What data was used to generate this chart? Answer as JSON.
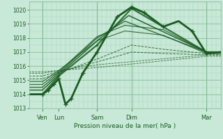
{
  "xlabel": "Pression niveau de la mer( hPa )",
  "bg_color": "#c8e8d8",
  "grid_major_color": "#88bb99",
  "grid_minor_color": "#aad4bb",
  "line_color": "#1a5c20",
  "ylim": [
    1013.0,
    1020.6
  ],
  "yticks": [
    1013,
    1014,
    1015,
    1016,
    1017,
    1018,
    1019,
    1020
  ],
  "xtick_labels": [
    "Ven",
    "Lun",
    "Sam",
    "Dim",
    "Mar"
  ],
  "xtick_positions": [
    0.07,
    0.155,
    0.355,
    0.535,
    0.925
  ],
  "vlines": [
    0.07,
    0.355,
    0.535,
    0.925
  ],
  "figsize": [
    3.2,
    2.0
  ],
  "dpi": 100,
  "lines": [
    {
      "kx": [
        0.07,
        0.155,
        0.355,
        0.535,
        0.925
      ],
      "ky": [
        1014.0,
        1015.3,
        1017.5,
        1020.1,
        1017.0
      ],
      "lw": 1.6,
      "ls": "-"
    },
    {
      "kx": [
        0.07,
        0.155,
        0.355,
        0.52,
        0.925
      ],
      "ky": [
        1014.3,
        1015.4,
        1017.8,
        1019.6,
        1017.0
      ],
      "lw": 1.2,
      "ls": "-"
    },
    {
      "kx": [
        0.07,
        0.155,
        0.355,
        0.5,
        0.925
      ],
      "ky": [
        1014.5,
        1015.5,
        1018.0,
        1019.2,
        1017.0
      ],
      "lw": 1.0,
      "ls": "-"
    },
    {
      "kx": [
        0.07,
        0.155,
        0.355,
        0.5,
        0.7,
        0.925
      ],
      "ky": [
        1014.7,
        1015.6,
        1018.1,
        1018.9,
        1018.6,
        1017.0
      ],
      "lw": 0.9,
      "ls": "-"
    },
    {
      "kx": [
        0.07,
        0.155,
        0.355,
        0.5,
        0.7,
        0.925
      ],
      "ky": [
        1014.9,
        1015.7,
        1017.8,
        1018.5,
        1018.2,
        1016.9
      ],
      "lw": 0.8,
      "ls": "-"
    },
    {
      "kx": [
        0.07,
        0.355,
        0.535,
        0.7,
        0.925
      ],
      "ky": [
        1015.1,
        1016.5,
        1017.5,
        1017.2,
        1016.9
      ],
      "lw": 0.7,
      "ls": "--"
    },
    {
      "kx": [
        0.07,
        0.355,
        0.535,
        0.7,
        0.925
      ],
      "ky": [
        1015.3,
        1016.3,
        1017.0,
        1016.9,
        1016.8
      ],
      "lw": 0.7,
      "ls": "--"
    },
    {
      "kx": [
        0.07,
        0.355,
        0.925
      ],
      "ky": [
        1015.5,
        1016.1,
        1016.8
      ],
      "lw": 0.6,
      "ls": "--"
    },
    {
      "kx": [
        0.07,
        0.355,
        0.925
      ],
      "ky": [
        1015.6,
        1015.9,
        1016.7
      ],
      "lw": 0.6,
      "ls": "--"
    }
  ],
  "dip_line": {
    "kx": [
      0.07,
      0.1,
      0.155,
      0.19,
      0.22,
      0.28,
      0.355,
      0.46,
      0.535,
      0.6,
      0.7,
      0.78,
      0.85,
      0.925,
      1.0
    ],
    "ky": [
      1014.0,
      1014.3,
      1015.1,
      1013.3,
      1013.7,
      1015.5,
      1017.0,
      1019.5,
      1020.2,
      1019.8,
      1018.8,
      1019.2,
      1018.5,
      1016.9,
      1017.0
    ],
    "lw": 2.0
  },
  "markers_x": [
    0.07,
    0.1,
    0.13,
    0.155,
    0.19,
    0.22,
    0.28,
    0.355,
    0.46,
    0.535,
    0.6,
    0.7,
    0.85,
    0.925
  ]
}
